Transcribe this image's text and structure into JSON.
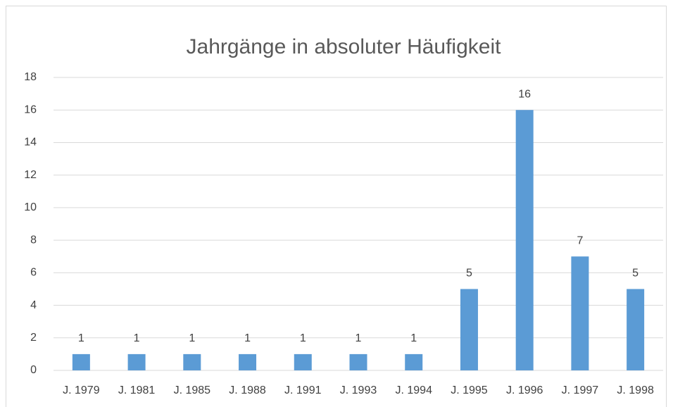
{
  "chart_data": {
    "type": "bar",
    "title": "Jahrgänge in absoluter Häufigkeit",
    "categories": [
      "J. 1979",
      "J. 1981",
      "J. 1985",
      "J. 1988",
      "J. 1991",
      "J. 1993",
      "J. 1994",
      "J. 1995",
      "J. 1996",
      "J. 1997",
      "J. 1998"
    ],
    "values": [
      1,
      1,
      1,
      1,
      1,
      1,
      1,
      5,
      16,
      7,
      5
    ],
    "color": "#5b9bd5",
    "ylim": [
      0,
      18
    ],
    "yticks": [
      0,
      2,
      4,
      6,
      8,
      10,
      12,
      14,
      16,
      18
    ],
    "grid": true,
    "data_labels": true
  }
}
